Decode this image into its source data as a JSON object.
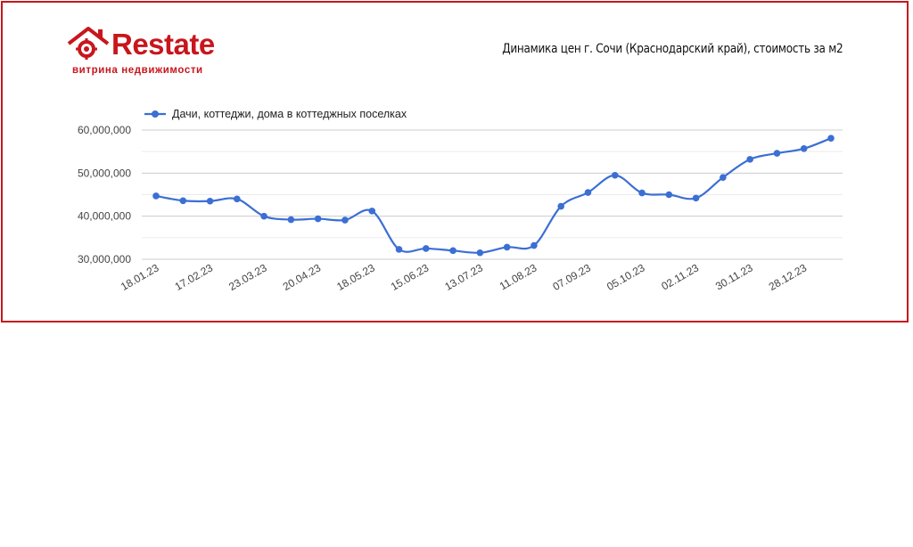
{
  "brand": {
    "name": "Restate",
    "tagline": "витрина недвижимости",
    "color": "#c8161d"
  },
  "chart_data": {
    "type": "line",
    "title": "Динамика цен г. Сочи (Краснодарский край), стоимость за м2",
    "xlabel": "",
    "ylabel": "",
    "ylim": [
      30000000,
      60000000
    ],
    "y_ticks": [
      "30,000,000",
      "40,000,000",
      "50,000,000",
      "60,000,000"
    ],
    "y_tick_values": [
      30000000,
      40000000,
      50000000,
      60000000
    ],
    "x_tick_labels": [
      "18.01.23",
      "17.02.23",
      "23.03.23",
      "20.04.23",
      "18.05.23",
      "15.06.23",
      "13.07.23",
      "11.08.23",
      "07.09.23",
      "05.10.23",
      "02.11.23",
      "30.11.23",
      "28.12.23"
    ],
    "grid": true,
    "legend_position": "top-left",
    "series": [
      {
        "name": "Дачи, коттеджи, дома в коттеджных поселках",
        "color": "#3b6fd4",
        "values": [
          44700000,
          43600000,
          43500000,
          44000000,
          40000000,
          39200000,
          39400000,
          39100000,
          41200000,
          32300000,
          32500000,
          32000000,
          31500000,
          32800000,
          33200000,
          42300000,
          45500000,
          49500000,
          45400000,
          45000000,
          44200000,
          49000000,
          53200000,
          54600000,
          55700000,
          58100000
        ]
      }
    ]
  }
}
